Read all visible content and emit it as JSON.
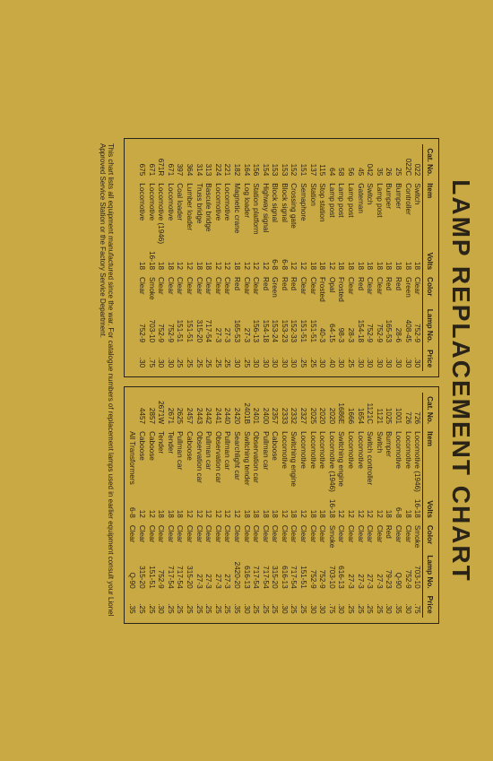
{
  "title": "LAMP REPLACEMENT CHART",
  "footnote": "This chart lists all equipment manufactured since the war. For catalogue numbers of replacement lamps used in earlier equipment consult your Lionel Approved Service Station or the Factory Service Department.",
  "columns": [
    "Cat. No.",
    "Item",
    "Volts",
    "Color",
    "Lamp No.",
    "Price"
  ],
  "left": [
    [
      "022",
      "Switch",
      "18",
      "Clear",
      "752-9",
      ".30"
    ],
    [
      "022C",
      "Controller",
      "18",
      "Green",
      "408-45",
      ".30"
    ],
    [
      "25",
      "Bumper",
      "18",
      "Red",
      "28-6",
      ".30"
    ],
    [
      "26",
      "Bumper",
      "18",
      "Red",
      "165-53",
      ".30"
    ],
    [
      "35",
      "Lamp post",
      "18",
      "Clear",
      "752-9",
      ".30"
    ],
    [
      "042",
      "Switch",
      "18",
      "Clear",
      "752-9",
      ".30"
    ],
    [
      "45",
      "Gateman",
      "18",
      "Red",
      "154-18",
      ".30"
    ],
    [
      "56",
      "Lamp post",
      "18",
      "Clear",
      "28-3",
      ".25"
    ],
    [
      "58",
      "Lamp post",
      "18",
      "Frosted",
      "98-3",
      ".30"
    ],
    [
      "64",
      "Lamp post",
      "12",
      "Opal",
      "64-15",
      ".40"
    ],
    [
      "115",
      "Stop station",
      "18",
      "Frosted",
      "40-3",
      ".30"
    ],
    [
      "137",
      "Station",
      "18",
      "Clear",
      "151-51",
      ".25"
    ],
    [
      "151",
      "Semaphore",
      "12",
      "Clear",
      "151-51",
      ".25"
    ],
    [
      "152",
      "Crossing gate",
      "12",
      "Red",
      "152-33",
      ".30"
    ],
    [
      "153",
      "Block signal",
      "6-8",
      "Red",
      "153-23",
      ".30"
    ],
    [
      "153",
      "Block signal",
      "6-8",
      "Green",
      "153-24",
      ".30"
    ],
    [
      "154",
      "Highway signal",
      "12",
      "Red",
      "154-18",
      ".30"
    ],
    [
      "156",
      "Station platform",
      "12",
      "Clear",
      "156-13",
      ".30"
    ],
    [
      "164",
      "Log loader",
      "12",
      "Clear",
      "27-3",
      ".25"
    ],
    [
      "182",
      "Magnetic crane",
      "18",
      "Red",
      "165-53",
      ".30"
    ],
    [
      "221",
      "Locomotive",
      "12",
      "Clear",
      "27-3",
      ".25"
    ],
    [
      "224",
      "Locomotive",
      "12",
      "Clear",
      "27-3",
      ".25"
    ],
    [
      "313",
      "Bascule bridge",
      "18",
      "Clear",
      "717-54",
      ".25"
    ],
    [
      "314",
      "Truss bridge",
      "18",
      "Clear",
      "315-20",
      ".25"
    ],
    [
      "364",
      "Lumber loader",
      "12",
      "Clear",
      "151-51",
      ".25"
    ],
    [
      "397",
      "Coal loader",
      "12",
      "Clear",
      "151-51",
      ".25"
    ],
    [
      "671",
      "Locomotive",
      "18",
      "Clear",
      "752-9",
      ".30"
    ],
    [
      "671R",
      "Locomotive (1946)",
      "18",
      "Clear",
      "752-9",
      ".30"
    ],
    [
      "671",
      "Locomotive",
      "16-18",
      "Smoke",
      "703-10",
      ".75"
    ],
    [
      "675",
      "Locomotive",
      "18",
      "Clear",
      "752-9",
      ".30"
    ]
  ],
  "right": [
    [
      "726",
      "Locomotive (1946)",
      "16-18",
      "Smoke",
      "703-10",
      ".75"
    ],
    [
      "726",
      "Locomotive",
      "18",
      "Clear",
      "752-9",
      ".30"
    ],
    [
      "1001",
      "Locomotive",
      "6-8",
      "Clear",
      "Q-90",
      ".35"
    ],
    [
      "1025",
      "Bumper",
      "18",
      "Red",
      "79-23",
      ".30"
    ],
    [
      "1121",
      "Switch",
      "12",
      "Clear",
      "27-3",
      ".25"
    ],
    [
      "1121C",
      "Switch controller",
      "12",
      "Clear",
      "27-3",
      ".25"
    ],
    [
      "1654",
      "Locomotive",
      "12",
      "Clear",
      "27-3",
      ".25"
    ],
    [
      "1666",
      "Locomotive",
      "12",
      "Clear",
      "27-3",
      ".25"
    ],
    [
      "1686E",
      "Switching engine",
      "12",
      "Clear",
      "616-13",
      ".30"
    ],
    [
      "2020",
      "Locomotive (1946)",
      "16-18",
      "Smoke",
      "703-10",
      ".75"
    ],
    [
      "2020",
      "Locomotive",
      "18",
      "Clear",
      "752-9",
      ".30"
    ],
    [
      "2025",
      "Locomotive",
      "18",
      "Clear",
      "752-9",
      ".30"
    ],
    [
      "2327",
      "Locomotive",
      "12",
      "Clear",
      "151-51",
      ".25"
    ],
    [
      "2332",
      "Switching engine",
      "18",
      "Clear",
      "717-54",
      ".25"
    ],
    [
      "2333",
      "Locomotive",
      "12",
      "Clear",
      "616-13",
      ".30"
    ],
    [
      "2357",
      "Caboose",
      "18",
      "Clear",
      "315-20",
      ".25"
    ],
    [
      "2400",
      "Pullman car",
      "18",
      "Clear",
      "717-54",
      ".25"
    ],
    [
      "2401",
      "Observation car",
      "18",
      "Clear",
      "717-54",
      ".25"
    ],
    [
      "2401B",
      "Switching tender",
      "18",
      "Clear",
      "616-13",
      ".30"
    ],
    [
      "2420",
      "Searchlight car",
      "12",
      "Clear",
      "2420-20",
      ".35"
    ],
    [
      "2440",
      "Pullman car",
      "12",
      "Clear",
      "27-3",
      ".25"
    ],
    [
      "2441",
      "Observation car",
      "12",
      "Clear",
      "27-3",
      ".25"
    ],
    [
      "2442",
      "Pullman car",
      "12",
      "Clear",
      "27-3",
      ".25"
    ],
    [
      "2443",
      "Observation car",
      "12",
      "Clear",
      "27-3",
      ".25"
    ],
    [
      "2457",
      "Caboose",
      "12",
      "Clear",
      "315-20",
      ".25"
    ],
    [
      "2625",
      "Pullman car",
      "18",
      "Clear",
      "717-54",
      ".25"
    ],
    [
      "2671",
      "Tender",
      "18",
      "Clear",
      "717-54",
      ".25"
    ],
    [
      "2671W",
      "Tender",
      "18",
      "Clear",
      "752-9",
      ".30"
    ],
    [
      "2857",
      "Caboose",
      "12",
      "Clear",
      "151-51",
      ".25"
    ],
    [
      "4457",
      "Caboose",
      "12",
      "Clear",
      "315-20",
      ".25"
    ],
    [
      "",
      "All Transformers",
      "6-8",
      "Clear",
      "Q-90",
      ".35"
    ]
  ]
}
